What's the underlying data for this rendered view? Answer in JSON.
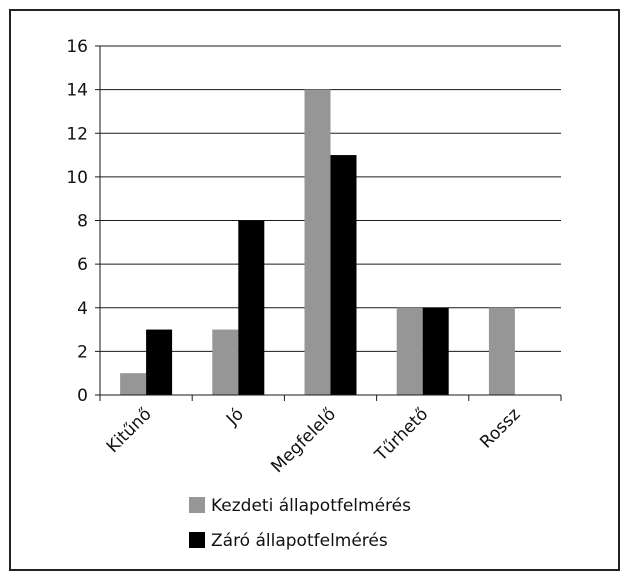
{
  "chart_data": {
    "type": "bar",
    "title": "",
    "xlabel": "",
    "ylabel": "",
    "categories": [
      "Kitűnő",
      "Jó",
      "Megfelelő",
      "Tűrhető",
      "Rossz"
    ],
    "series": [
      {
        "name": "Kezdeti állapotfelmérés",
        "values": [
          1,
          3,
          14,
          4,
          4
        ],
        "color": "#969696"
      },
      {
        "name": "Záró állapotfelmérés",
        "values": [
          3,
          8,
          11,
          4,
          0
        ],
        "color": "#000000"
      }
    ],
    "ylim": [
      0,
      16
    ],
    "yticks": [
      0,
      2,
      4,
      6,
      8,
      10,
      12,
      14,
      16
    ],
    "grid": true,
    "legend_position": "bottom"
  }
}
